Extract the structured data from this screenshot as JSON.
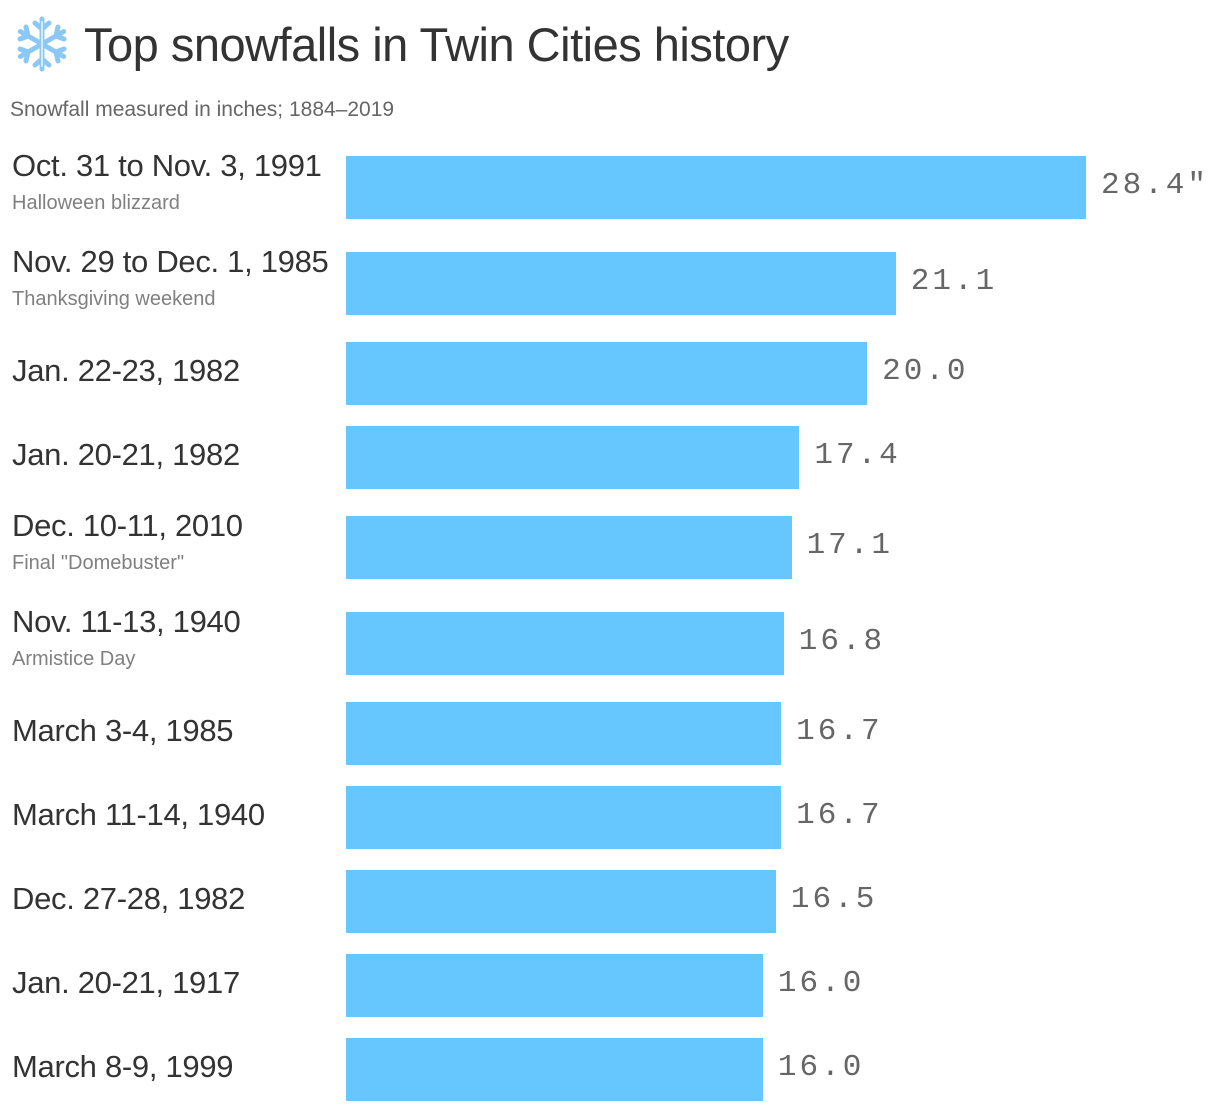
{
  "header": {
    "title": "Top snowfalls in Twin Cities history",
    "title_icon": "snowflake-icon",
    "subtitle": "Snowfall measured in inches; 1884–2019"
  },
  "colors": {
    "bar": "#66c7ff",
    "title": "#333333",
    "value": "#666666",
    "note": "#808080"
  },
  "chart_data": {
    "type": "bar",
    "orientation": "horizontal",
    "title": "Top snowfalls in Twin Cities history",
    "subtitle": "Snowfall measured in inches; 1884–2019",
    "xlabel": "",
    "ylabel": "",
    "unit": "inches",
    "xlim": [
      0,
      28.4
    ],
    "grid": false,
    "legend": null,
    "categories": [
      "Oct. 31 to Nov. 3, 1991",
      "Nov. 29 to Dec. 1, 1985",
      "Jan. 22-23, 1982",
      "Jan. 20-21, 1982",
      "Dec. 10-11, 2010",
      "Nov. 11-13, 1940",
      "March 3-4, 1985",
      "March 11-14, 1940",
      "Dec. 27-28, 1982",
      "Jan. 20-21, 1917",
      "March 8-9, 1999"
    ],
    "values": [
      28.4,
      21.1,
      20.0,
      17.4,
      17.1,
      16.8,
      16.7,
      16.7,
      16.5,
      16.0,
      16.0
    ],
    "annotations": [
      "Halloween blizzard",
      "Thanksgiving weekend",
      "",
      "",
      "Final \"Domebuster\"",
      "Armistice Day",
      "",
      "",
      "",
      "",
      ""
    ]
  },
  "rows": [
    {
      "label": "Oct. 31 to Nov. 3, 1991",
      "note": "Halloween blizzard",
      "value": 28.4,
      "value_label": "28.4\""
    },
    {
      "label": "Nov. 29 to Dec. 1, 1985",
      "note": "Thanksgiving weekend",
      "value": 21.1,
      "value_label": "21.1"
    },
    {
      "label": "Jan. 22-23, 1982",
      "note": "",
      "value": 20.0,
      "value_label": "20.0"
    },
    {
      "label": "Jan. 20-21, 1982",
      "note": "",
      "value": 17.4,
      "value_label": "17.4"
    },
    {
      "label": "Dec. 10-11, 2010",
      "note": "Final \"Domebuster\"",
      "value": 17.1,
      "value_label": "17.1"
    },
    {
      "label": "Nov. 11-13, 1940",
      "note": "Armistice Day",
      "value": 16.8,
      "value_label": "16.8"
    },
    {
      "label": "March 3-4, 1985",
      "note": "",
      "value": 16.7,
      "value_label": "16.7"
    },
    {
      "label": "March 11-14, 1940",
      "note": "",
      "value": 16.7,
      "value_label": "16.7"
    },
    {
      "label": "Dec. 27-28, 1982",
      "note": "",
      "value": 16.5,
      "value_label": "16.5"
    },
    {
      "label": "Jan. 20-21, 1917",
      "note": "",
      "value": 16.0,
      "value_label": "16.0"
    },
    {
      "label": "March 8-9, 1999",
      "note": "",
      "value": 16.0,
      "value_label": "16.0"
    }
  ]
}
